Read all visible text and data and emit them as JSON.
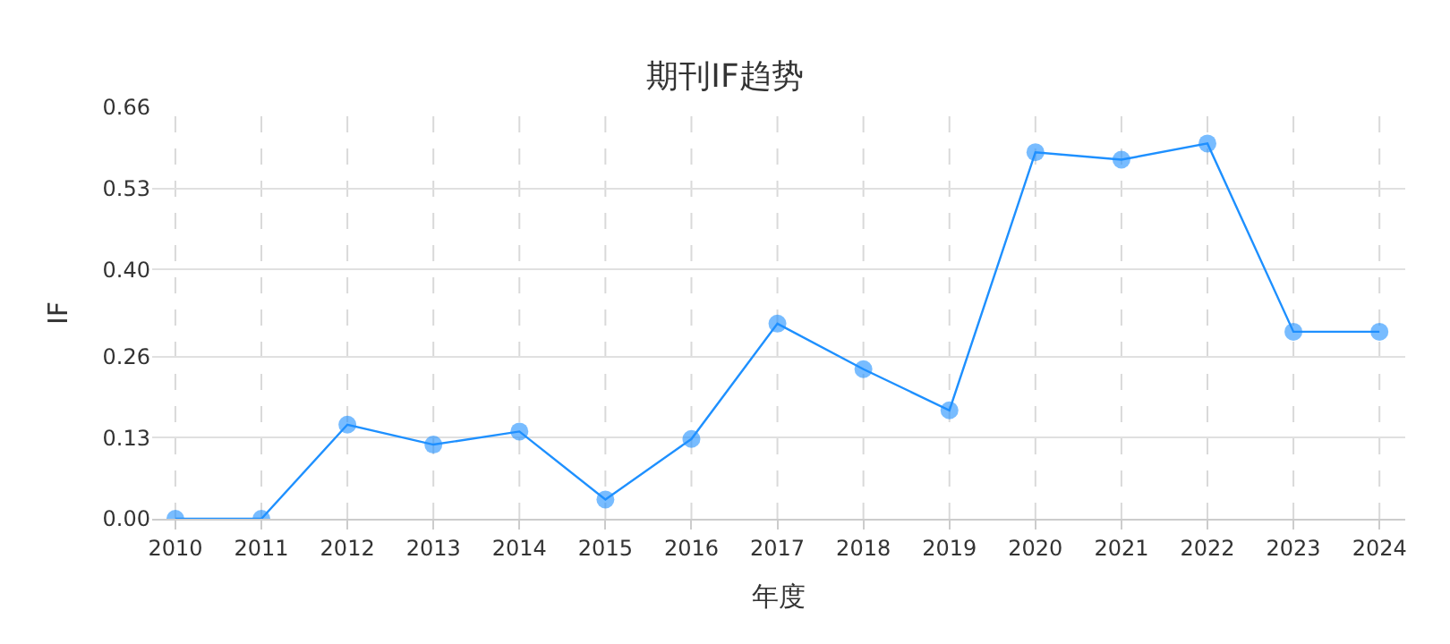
{
  "chart_data": {
    "type": "line",
    "title": "期刊IF趋势",
    "xlabel": "年度",
    "ylabel": "IF",
    "categories": [
      "2010",
      "2011",
      "2012",
      "2013",
      "2014",
      "2015",
      "2016",
      "2017",
      "2018",
      "2019",
      "2020",
      "2021",
      "2022",
      "2023",
      "2024"
    ],
    "series": [
      {
        "color": "#1e90ff",
        "values": [
          0,
          0,
          0.151,
          0.119,
          0.14,
          0.031,
          0.128,
          0.313,
          0.24,
          0.174,
          0.588,
          0.576,
          0.602,
          0.3,
          0.3
        ]
      }
    ],
    "ylim": [
      0,
      0.66
    ],
    "yticks": [
      {
        "value": 0,
        "label": "0.00"
      },
      {
        "value": 0.13,
        "label": "0.13"
      },
      {
        "value": 0.26,
        "label": "0.26"
      },
      {
        "value": 0.4,
        "label": "0.40"
      },
      {
        "value": 0.53,
        "label": "0.53"
      },
      {
        "value": 0.66,
        "label": "0.66"
      }
    ],
    "grid": true,
    "marker": "circle",
    "line_style": "solid"
  }
}
